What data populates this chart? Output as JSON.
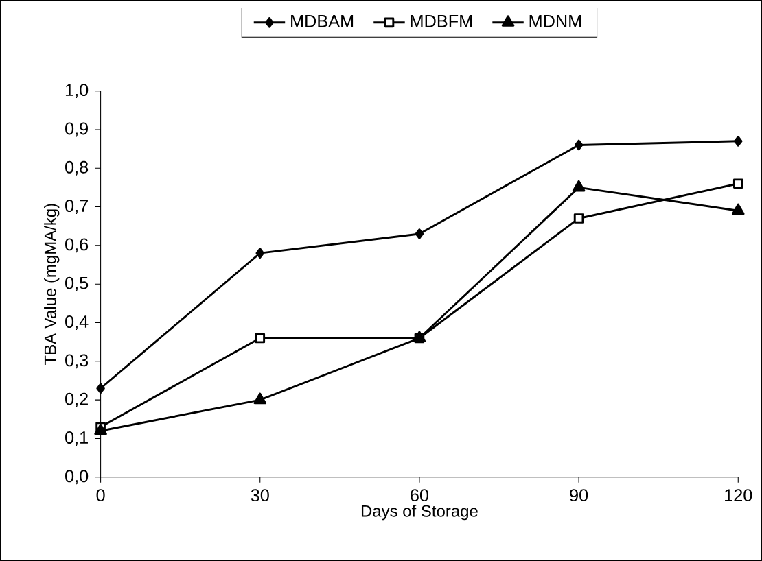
{
  "chart_data": {
    "type": "line",
    "xlabel": "Days of Storage",
    "ylabel": "TBA Value (mgMA/kg)",
    "x": [
      0,
      30,
      60,
      90,
      120
    ],
    "series": [
      {
        "name": "MDBAM",
        "color": "#000000",
        "marker": "diamond",
        "values": [
          0.23,
          0.58,
          0.63,
          0.86,
          0.87
        ]
      },
      {
        "name": "MDBFM",
        "color": "#000000",
        "marker": "square",
        "values": [
          0.13,
          0.36,
          0.36,
          0.67,
          0.76
        ]
      },
      {
        "name": "MDNM",
        "color": "#000000",
        "marker": "triangle",
        "values": [
          0.12,
          0.2,
          0.36,
          0.75,
          0.69
        ]
      }
    ],
    "xlim": [
      0,
      120
    ],
    "xticks": [
      0,
      30,
      60,
      90,
      120
    ],
    "ylim": [
      0,
      1
    ],
    "yticks": [
      {
        "value": 0,
        "label": "0,0"
      },
      {
        "value": 0.1,
        "label": "0,1"
      },
      {
        "value": 0.2,
        "label": "0,2"
      },
      {
        "value": 0.3,
        "label": "0,3"
      },
      {
        "value": 0.4,
        "label": "0,4"
      },
      {
        "value": 0.5,
        "label": "0,5"
      },
      {
        "value": 0.6,
        "label": "0,6"
      },
      {
        "value": 0.7,
        "label": "0,7"
      },
      {
        "value": 0.8,
        "label": "0,8"
      },
      {
        "value": 0.9,
        "label": "0,9"
      },
      {
        "value": 1,
        "label": "1,0"
      }
    ],
    "legend": "top",
    "grid": false,
    "line_style": "solid"
  }
}
